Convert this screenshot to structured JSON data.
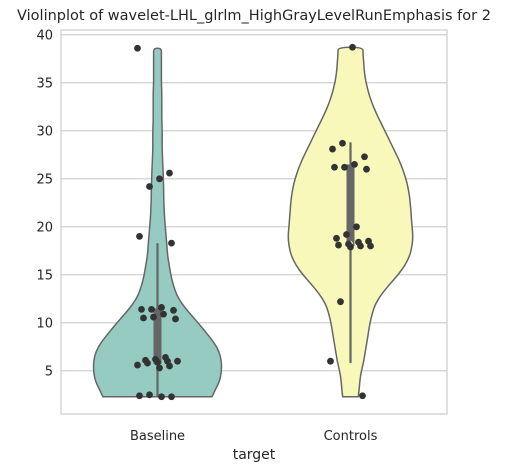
{
  "chart_data": {
    "type": "violin",
    "title": "Violinplot of wavelet-LHL_glrlm_HighGrayLevelRunEmphasis for 2",
    "xlabel": "target",
    "ylabel": "",
    "ylim": [
      0.5,
      40.5
    ],
    "yticks": [
      5,
      10,
      15,
      20,
      25,
      30,
      35,
      40
    ],
    "grid": "horizontal",
    "categories": [
      "Baseline",
      "Controls"
    ],
    "series": [
      {
        "category": "Baseline",
        "color": "#95cbc1",
        "box": {
          "q1": 5.7,
          "median": 6.0,
          "q3": 11.5,
          "whisker_low": 2.3,
          "whisker_high": 18.3
        },
        "density": [
          [
            2.3,
            0.7
          ],
          [
            3,
            0.74
          ],
          [
            4,
            0.8
          ],
          [
            5,
            0.82
          ],
          [
            6,
            0.82
          ],
          [
            7,
            0.79
          ],
          [
            8,
            0.72
          ],
          [
            9,
            0.62
          ],
          [
            10,
            0.52
          ],
          [
            11,
            0.41
          ],
          [
            12,
            0.31
          ],
          [
            13,
            0.24
          ],
          [
            14,
            0.2
          ],
          [
            15,
            0.17
          ],
          [
            16,
            0.15
          ],
          [
            17,
            0.13
          ],
          [
            18,
            0.12
          ],
          [
            19,
            0.11
          ],
          [
            20,
            0.1
          ],
          [
            21,
            0.09
          ],
          [
            22,
            0.085
          ],
          [
            23,
            0.08
          ],
          [
            24,
            0.08
          ],
          [
            25,
            0.075
          ],
          [
            26,
            0.07
          ],
          [
            27,
            0.065
          ],
          [
            28,
            0.06
          ],
          [
            29,
            0.06
          ],
          [
            30,
            0.06
          ],
          [
            31,
            0.055
          ],
          [
            32,
            0.055
          ],
          [
            33,
            0.055
          ],
          [
            34,
            0.055
          ],
          [
            35,
            0.05
          ],
          [
            36,
            0.05
          ],
          [
            37,
            0.05
          ],
          [
            38,
            0.05
          ],
          [
            38.6,
            0.05
          ]
        ],
        "points": [
          38.6,
          25.6,
          25.0,
          24.2,
          19.0,
          18.3,
          11.6,
          11.4,
          11.4,
          11.3,
          10.9,
          10.6,
          10.5,
          10.4,
          6.4,
          6.2,
          6.1,
          6.0,
          6.0,
          5.9,
          5.8,
          5.6,
          5.5,
          5.3,
          2.5,
          2.4,
          2.3,
          2.3
        ]
      },
      {
        "category": "Controls",
        "color": "#f8f8bb",
        "box": {
          "q1": 18.0,
          "median": 18.3,
          "q3": 26.5,
          "whisker_low": 5.8,
          "whisker_high": 28.8
        },
        "density": [
          [
            2.3,
            0.1
          ],
          [
            3,
            0.11
          ],
          [
            4,
            0.12
          ],
          [
            5,
            0.14
          ],
          [
            6,
            0.17
          ],
          [
            7,
            0.19
          ],
          [
            8,
            0.21
          ],
          [
            9,
            0.23
          ],
          [
            10,
            0.25
          ],
          [
            11,
            0.28
          ],
          [
            12,
            0.32
          ],
          [
            13,
            0.4
          ],
          [
            14,
            0.5
          ],
          [
            15,
            0.61
          ],
          [
            16,
            0.7
          ],
          [
            17,
            0.76
          ],
          [
            18,
            0.79
          ],
          [
            19,
            0.8
          ],
          [
            20,
            0.79
          ],
          [
            21,
            0.78
          ],
          [
            22,
            0.77
          ],
          [
            23,
            0.76
          ],
          [
            24,
            0.74
          ],
          [
            25,
            0.71
          ],
          [
            26,
            0.67
          ],
          [
            27,
            0.62
          ],
          [
            28,
            0.56
          ],
          [
            29,
            0.5
          ],
          [
            30,
            0.44
          ],
          [
            31,
            0.38
          ],
          [
            32,
            0.32
          ],
          [
            33,
            0.27
          ],
          [
            34,
            0.23
          ],
          [
            35,
            0.2
          ],
          [
            36,
            0.18
          ],
          [
            37,
            0.17
          ],
          [
            38,
            0.16
          ],
          [
            38.7,
            0.16
          ]
        ],
        "points": [
          38.7,
          28.7,
          28.1,
          27.3,
          26.5,
          26.2,
          26.2,
          26.0,
          20.0,
          19.2,
          18.8,
          18.5,
          18.4,
          18.2,
          18.1,
          18.0,
          18.0,
          17.9,
          12.2,
          6.0,
          2.4
        ]
      }
    ]
  }
}
